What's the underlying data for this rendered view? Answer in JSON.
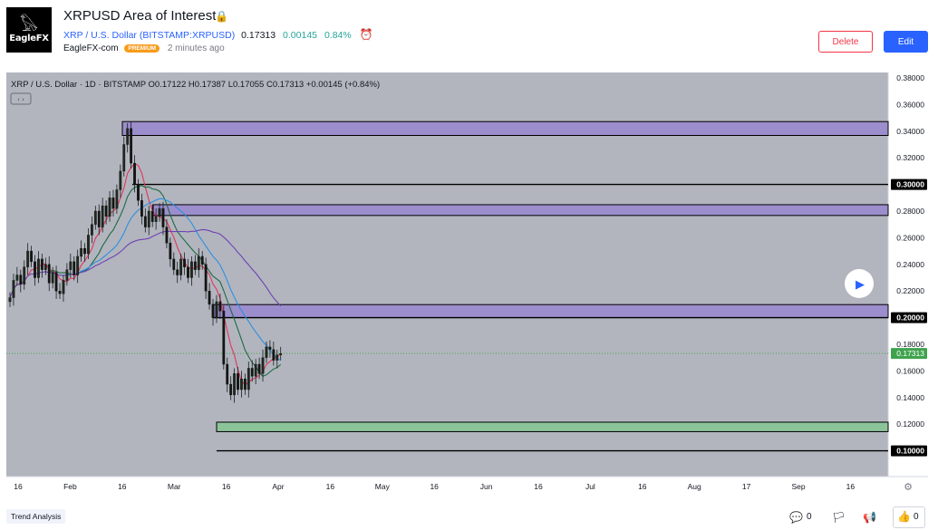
{
  "header": {
    "logo_glyph": "𓅃",
    "logo_text": "EagleFX",
    "title": "XRPUSD Area of Interest",
    "lock_glyph": "🔒",
    "symbol_label": "XRP / U.S. Dollar (BITSTAMP:XRPUSD)",
    "price": "0.17313",
    "change": "0.00145",
    "change_pct": "0.84%",
    "alarm_glyph": "⏰",
    "author": "EagleFX-com",
    "badge": "PREMIUM",
    "time": "2 minutes ago",
    "delete_label": "Delete",
    "edit_label": "Edit"
  },
  "chart": {
    "legend": "XRP / U.S. Dollar · 1D · BITSTAMP  O0.17122  H0.17387  L0.17055  C0.17313  +0.00145 (+0.84%)",
    "collapse_glyph": "‹ ›",
    "play_glyph": "▶",
    "settings_glyph": "⚙",
    "colors": {
      "bg": "#b2b5be",
      "zone_purple": "#9c8dcc",
      "zone_green": "#8cc49a",
      "up_candle": "#1f2a1f",
      "ma_fast": "#e0365a",
      "ma_mid": "#1e6b43",
      "ma_slow": "#2e8fe0",
      "ma_long": "#6e42b3",
      "last_price": "#3fa34d"
    }
  },
  "chart_data": {
    "type": "candlestick",
    "symbol": "XRP / U.S. Dollar",
    "timeframe": "1D",
    "exchange": "BITSTAMP",
    "ohlc_last": {
      "open": 0.17122,
      "high": 0.17387,
      "low": 0.17055,
      "close": 0.17313,
      "change": 0.00145,
      "change_pct": 0.84
    },
    "y_ticks": [
      "0.38000",
      "0.36000",
      "0.34000",
      "0.32000",
      "0.30000",
      "0.28000",
      "0.26000",
      "0.24000",
      "0.22000",
      "0.20000",
      "0.18000",
      "0.17313",
      "0.16000",
      "0.14000",
      "0.12000",
      "0.10000"
    ],
    "x_ticks": [
      "16",
      "Feb",
      "16",
      "Mar",
      "16",
      "Apr",
      "16",
      "May",
      "16",
      "Jun",
      "16",
      "Jul",
      "16",
      "Aug",
      "17",
      "Sep",
      "16"
    ],
    "horizontal_lines": [
      0.3,
      0.2,
      0.1
    ],
    "last_price": 0.17313,
    "zones": [
      {
        "color": "purple",
        "from": 0.3368,
        "to": 0.3472
      },
      {
        "color": "purple",
        "from": 0.2767,
        "to": 0.2848
      },
      {
        "color": "purple",
        "from": 0.2,
        "to": 0.2098
      },
      {
        "color": "green",
        "from": 0.1144,
        "to": 0.1215
      }
    ],
    "closes": [
      0.215,
      0.228,
      0.232,
      0.225,
      0.238,
      0.25,
      0.242,
      0.23,
      0.244,
      0.236,
      0.24,
      0.226,
      0.234,
      0.22,
      0.218,
      0.228,
      0.236,
      0.242,
      0.232,
      0.246,
      0.252,
      0.248,
      0.262,
      0.27,
      0.28,
      0.268,
      0.284,
      0.276,
      0.29,
      0.282,
      0.296,
      0.31,
      0.33,
      0.342,
      0.316,
      0.3,
      0.288,
      0.276,
      0.268,
      0.28,
      0.272,
      0.276,
      0.282,
      0.268,
      0.256,
      0.244,
      0.236,
      0.232,
      0.244,
      0.238,
      0.23,
      0.242,
      0.236,
      0.246,
      0.24,
      0.22,
      0.21,
      0.2,
      0.212,
      0.205,
      0.165,
      0.15,
      0.142,
      0.158,
      0.146,
      0.154,
      0.146,
      0.162,
      0.156,
      0.165,
      0.158,
      0.17,
      0.178,
      0.176,
      0.168,
      0.172,
      0.173
    ]
  },
  "footer": {
    "tag": "Trend Analysis",
    "comment_glyph": "💬",
    "comment_count": "0",
    "bookmark_glyph": "🏳",
    "share_glyph": "📢",
    "like_glyph": "👍",
    "like_count": "0"
  }
}
